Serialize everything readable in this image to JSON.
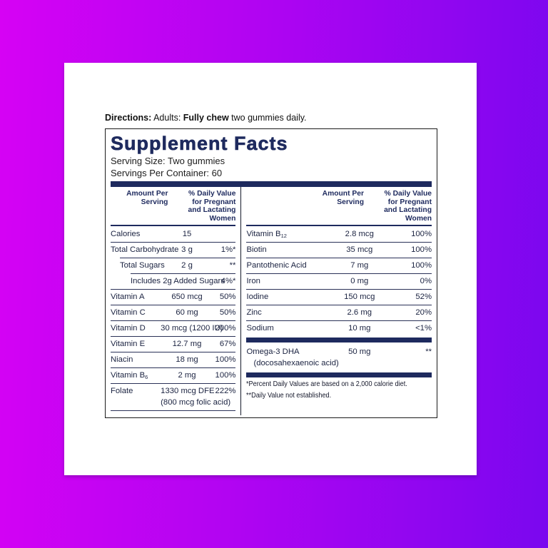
{
  "colors": {
    "background_gradient_left": "#d602f4",
    "background_gradient_right": "#7a07ef",
    "card": "#ffffff",
    "navy": "#1e2a5e",
    "rule_line": "#2a3157",
    "row_text": "#1a2240",
    "panel_border": "#1a1a1a"
  },
  "directions": {
    "parts": [
      {
        "text": "Directions:",
        "bold": true
      },
      {
        "text": " Adults: ",
        "bold": false
      },
      {
        "text": "Fully chew",
        "bold": true
      },
      {
        "text": " two gummies daily.",
        "bold": false
      }
    ]
  },
  "panel": {
    "title": "Supplement Facts",
    "serving_size": "Serving Size: Two gummies",
    "servings_per_container": "Servings Per Container: 60",
    "header": {
      "amount": "Amount Per Serving",
      "dv": "% Daily Value for Pregnant and Lactating Women"
    },
    "left_rows": [
      {
        "label": "Calories",
        "amount": "15",
        "dv": ""
      },
      {
        "label": "Total Carbohydrate",
        "amount": "3 g",
        "dv": "1%*"
      },
      {
        "label": "Total Sugars",
        "indent": 1,
        "amount": "2 g",
        "dv": "**"
      },
      {
        "label": "Includes 2g Added Sugars",
        "indent": 2,
        "amount": "",
        "dv": "4%*"
      },
      {
        "label": "Vitamin A",
        "amount": "650 mcg",
        "dv": "50%"
      },
      {
        "label": "Vitamin C",
        "amount": "60 mg",
        "dv": "50%"
      },
      {
        "label": "Vitamin D",
        "amount": "30 mcg (1200 IU)",
        "dv": "200%"
      },
      {
        "label": "Vitamin E",
        "amount": "12.7 mg",
        "dv": "67%"
      },
      {
        "label": "Niacin",
        "amount": "18 mg",
        "dv": "100%"
      },
      {
        "label": "Vitamin B",
        "sub": "6",
        "amount": "2 mg",
        "dv": "100%"
      },
      {
        "label": "Folate",
        "amount": "1330 mcg DFE",
        "amount2": "(800 mcg folic acid)",
        "dv": "222%"
      }
    ],
    "right_rows": [
      {
        "label": "Vitamin B",
        "sub": "12",
        "amount": "2.8 mcg",
        "dv": "100%"
      },
      {
        "label": "Biotin",
        "amount": "35 mcg",
        "dv": "100%"
      },
      {
        "label": "Pantothenic Acid",
        "amount": "7 mg",
        "dv": "100%"
      },
      {
        "label": "Iron",
        "amount": "0 mg",
        "dv": "0%"
      },
      {
        "label": "Iodine",
        "amount": "150 mcg",
        "dv": "52%"
      },
      {
        "label": "Zinc",
        "amount": "2.6 mg",
        "dv": "20%"
      },
      {
        "label": "Sodium",
        "amount": "10 mg",
        "dv": "<1%"
      },
      {
        "type": "bar"
      },
      {
        "label": "Omega-3 DHA",
        "label2": "(docosahexaenoic acid)",
        "amount": "50 mg",
        "dv": "**"
      },
      {
        "type": "bar"
      }
    ],
    "footnotes": [
      "*Percent Daily Values are based on a 2,000 calorie diet.",
      "**Daily Value not established."
    ]
  }
}
